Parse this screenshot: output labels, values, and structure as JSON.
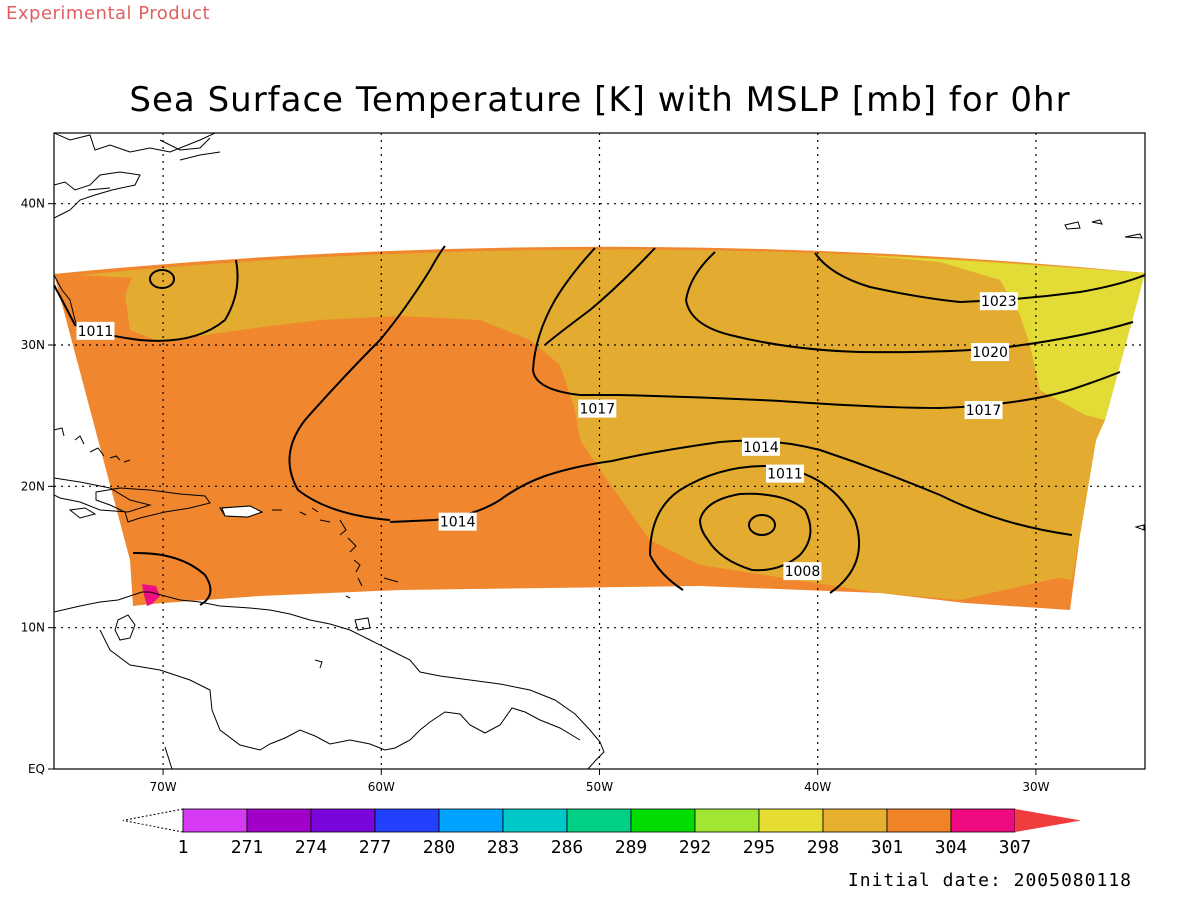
{
  "header": {
    "experimental": "Experimental Product",
    "title": "Sea Surface Temperature [K] with MSLP [mb] for 0hr",
    "initial_date": "Initial date: 2005080118"
  },
  "map": {
    "lon_range": [
      -75,
      -25
    ],
    "lat_range": [
      0,
      45
    ],
    "lon_ticks": [
      {
        "lon": -70,
        "label": "70W"
      },
      {
        "lon": -60,
        "label": "60W"
      },
      {
        "lon": -50,
        "label": "50W"
      },
      {
        "lon": -40,
        "label": "40W"
      },
      {
        "lon": -30,
        "label": "30W"
      }
    ],
    "lat_ticks": [
      {
        "lat": 0,
        "label": "EQ"
      },
      {
        "lat": 10,
        "label": "10N"
      },
      {
        "lat": 20,
        "label": "20N"
      },
      {
        "lat": 30,
        "label": "30N"
      },
      {
        "lat": 40,
        "label": "40N"
      }
    ],
    "grid": true
  },
  "colors": {
    "warm_sst": "#f0862e",
    "mid_sst": "#e3ab30",
    "cool_sst": "#e3dc36",
    "hot_sst": "#ec0f82",
    "land_outline": "#000000",
    "contour": "#000000"
  },
  "contour_labels": [
    {
      "text": "1011",
      "lon": -73.1,
      "lat": 31.0
    },
    {
      "text": "1017",
      "lon": -50.1,
      "lat": 25.5
    },
    {
      "text": "1023",
      "lon": -31.7,
      "lat": 33.1
    },
    {
      "text": "1020",
      "lon": -32.1,
      "lat": 29.5
    },
    {
      "text": "1017",
      "lon": -32.4,
      "lat": 25.4
    },
    {
      "text": "1014",
      "lon": -42.6,
      "lat": 22.8
    },
    {
      "text": "1011",
      "lon": -41.5,
      "lat": 20.9
    },
    {
      "text": "1014",
      "lon": -56.5,
      "lat": 17.5
    },
    {
      "text": "1008",
      "lon": -40.7,
      "lat": 14.0
    }
  ],
  "colorbar": {
    "colors": [
      "#d63af2",
      "#a000c8",
      "#7a06dc",
      "#2340ff",
      "#00a3ff",
      "#00c8c8",
      "#00d086",
      "#00dc00",
      "#a0e632",
      "#e6dc32",
      "#e6af2d",
      "#f08228",
      "#f00a82",
      "#f03c3c"
    ],
    "labels": [
      "1",
      "271",
      "274",
      "277",
      "280",
      "283",
      "286",
      "289",
      "292",
      "295",
      "298",
      "301",
      "304",
      "307"
    ]
  }
}
